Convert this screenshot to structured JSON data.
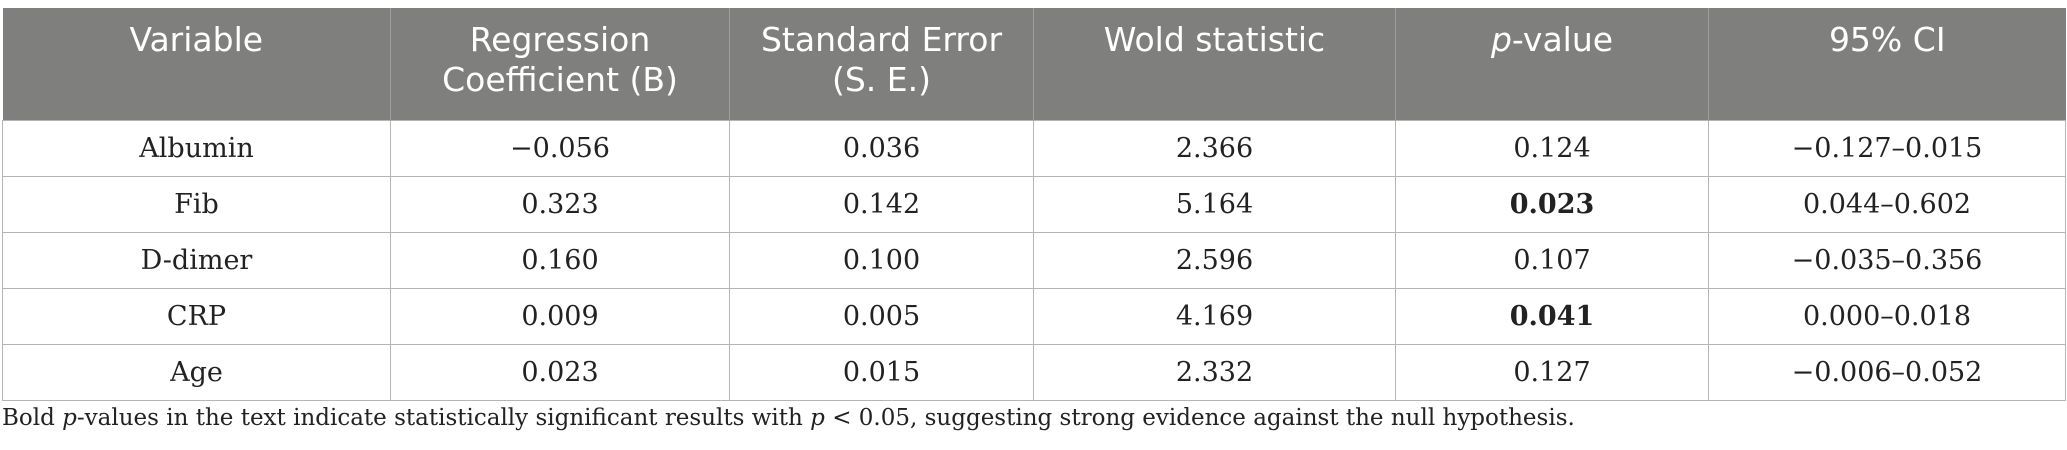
{
  "table": {
    "headers": [
      {
        "text": "Variable"
      },
      {
        "text": "Regression Coefficient (B)"
      },
      {
        "text": "Standard Error (S. E.)"
      },
      {
        "text": "Wold statistic"
      },
      {
        "prefix": "p",
        "text": "-value"
      },
      {
        "text": "95% CI"
      }
    ],
    "rows": [
      {
        "variable": "Albumin",
        "b": "−0.056",
        "se": "0.036",
        "wold": "2.366",
        "p": "0.124",
        "p_bold": false,
        "ci": "−0.127–0.015"
      },
      {
        "variable": "Fib",
        "b": "0.323",
        "se": "0.142",
        "wold": "5.164",
        "p": "0.023",
        "p_bold": true,
        "ci": "0.044–0.602"
      },
      {
        "variable": "D-dimer",
        "b": "0.160",
        "se": "0.100",
        "wold": "2.596",
        "p": "0.107",
        "p_bold": false,
        "ci": "−0.035–0.356"
      },
      {
        "variable": "CRP",
        "b": "0.009",
        "se": "0.005",
        "wold": "4.169",
        "p": "0.041",
        "p_bold": true,
        "ci": "0.000–0.018"
      },
      {
        "variable": "Age",
        "b": "0.023",
        "se": "0.015",
        "wold": "2.332",
        "p": "0.127",
        "p_bold": false,
        "ci": "−0.006–0.052"
      }
    ]
  },
  "footnote": {
    "part1": "Bold ",
    "part2_italic": "p",
    "part3": "-values in the text indicate statistically significant results with ",
    "part4_italic": "p",
    "part5": " < 0.05, suggesting strong evidence against the null hypothesis."
  },
  "colors": {
    "header_bg": "#7f7f7e",
    "header_text": "#ffffff",
    "grid": "#b5b5b5"
  }
}
